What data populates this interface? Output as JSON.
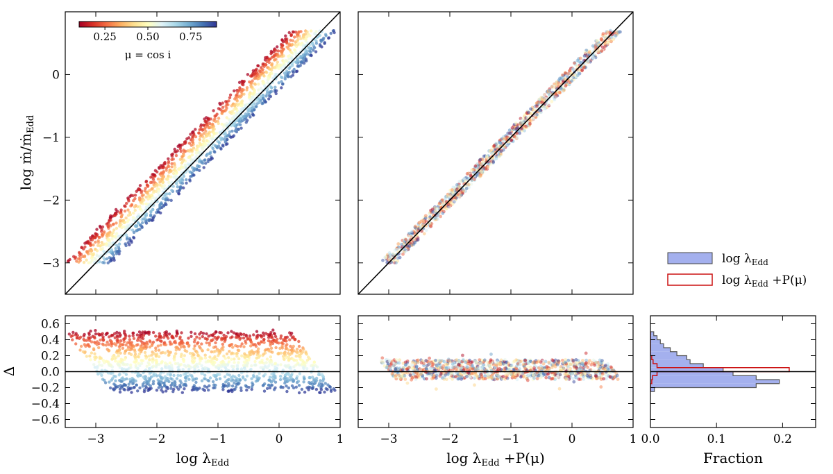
{
  "chart_data": [
    {
      "panel": "top-left",
      "type": "scatter",
      "description": "log mdot/mdot_Edd vs log lambda_Edd, points coloured by mu = cos i",
      "xlim": [
        -3.5,
        1.0
      ],
      "ylim": [
        -3.5,
        1.0
      ],
      "xticks": [
        -3,
        -2,
        -1,
        0,
        1
      ],
      "yticks": [
        -3,
        -2,
        -1,
        0
      ],
      "ytick_labels": [
        "−3",
        "−2",
        "−1",
        "0"
      ],
      "ylabel": "log ṁ/ṁ",
      "ylabel_sub": "Edd",
      "reference_line": "y = x",
      "band": {
        "y_min": -3.0,
        "y_max": 0.7,
        "offset_min": -0.25,
        "offset_max": 0.5
      },
      "colorbar": {
        "label": "μ = cos i",
        "ticks": [
          0.25,
          0.5,
          0.75
        ],
        "tick_labels": [
          "0.25",
          "0.50",
          "0.75"
        ],
        "range": [
          0.1,
          0.9
        ],
        "cmap": "RdYlBu"
      }
    },
    {
      "panel": "top-middle",
      "type": "scatter",
      "description": "log mdot/mdot_Edd vs log lambda_Edd + P(mu)",
      "xlim": [
        -3.5,
        1.0
      ],
      "ylim": [
        -3.5,
        1.0
      ],
      "xticks": [
        -3,
        -2,
        -1,
        0,
        1
      ],
      "reference_line": "y = x",
      "band": {
        "y_min": -3.0,
        "y_max": 0.7,
        "offset_min": -0.12,
        "offset_max": 0.15
      }
    },
    {
      "panel": "bottom-left",
      "type": "scatter",
      "description": "Delta vs log lambda_Edd",
      "xlim": [
        -3.5,
        1.0
      ],
      "ylim": [
        -0.7,
        0.7
      ],
      "xticks": [
        -3,
        -2,
        -1,
        0,
        1
      ],
      "xtick_labels": [
        "−3",
        "−2",
        "−1",
        "0",
        "1"
      ],
      "yticks": [
        0.6,
        0.4,
        0.2,
        0.0,
        -0.2,
        -0.4,
        -0.6
      ],
      "ytick_labels": [
        "0.6",
        "0.4",
        "0.2",
        "0.0",
        "−0.2",
        "−0.4",
        "−0.6"
      ],
      "xlabel": "log λ",
      "xlabel_sub": "Edd",
      "ylabel": "Δ",
      "delta_range": [
        -0.25,
        0.5
      ]
    },
    {
      "panel": "bottom-middle",
      "type": "scatter",
      "description": "Delta vs log lambda_Edd + P(mu)",
      "xlim": [
        -3.5,
        1.0
      ],
      "ylim": [
        -0.7,
        0.7
      ],
      "xticks": [
        -3,
        -2,
        -1,
        0,
        1
      ],
      "xtick_labels": [
        "−3",
        "−2",
        "−1",
        "0",
        "1"
      ],
      "xlabel": "log λ",
      "xlabel_sub": "Edd",
      "xlabel_suffix": " +P(μ)",
      "delta_range": [
        -0.1,
        0.15
      ]
    },
    {
      "panel": "bottom-right",
      "type": "histogram",
      "orientation": "horizontal",
      "xlabel": "Fraction",
      "xlim": [
        0.0,
        0.25
      ],
      "xticks": [
        0.0,
        0.1,
        0.2
      ],
      "xtick_labels": [
        "0.0",
        "0.1",
        "0.2"
      ],
      "ylim": [
        -0.7,
        0.7
      ],
      "bin_edges": [
        -0.25,
        -0.2,
        -0.15,
        -0.1,
        -0.05,
        0.0,
        0.05,
        0.1,
        0.15,
        0.2,
        0.25,
        0.3,
        0.35,
        0.4,
        0.45,
        0.5
      ],
      "series": [
        {
          "name": "log λ",
          "name_sub": "Edd",
          "name_suffix": "",
          "style": "filled",
          "color": "#7b8ae6",
          "edge": "#555555",
          "values": [
            0.006,
            0.16,
            0.195,
            0.16,
            0.125,
            0.11,
            0.08,
            0.06,
            0.055,
            0.04,
            0.03,
            0.02,
            0.015,
            0.01,
            0.005
          ]
        },
        {
          "name": "log λ",
          "name_sub": "Edd",
          "name_suffix": " +P(μ)",
          "style": "step",
          "color": "#cc1111",
          "values": [
            0.0,
            0.0,
            0.002,
            0.003,
            0.01,
            0.21,
            0.01,
            0.004,
            0.002,
            0.0,
            0.0,
            0.0,
            0.0,
            0.0,
            0.0
          ]
        }
      ]
    }
  ],
  "colors": {
    "low_mu": "#a50026",
    "mid_mu": "#ffffbf",
    "high_mu": "#313695"
  }
}
